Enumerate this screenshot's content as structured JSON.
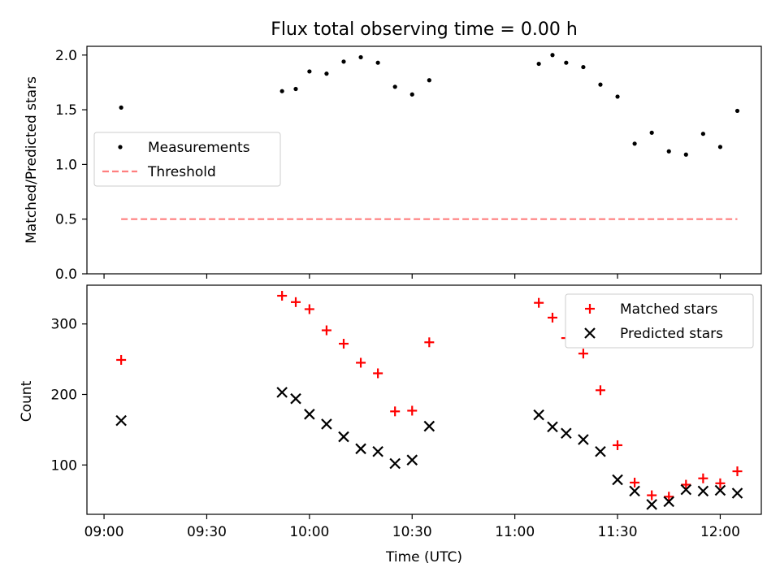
{
  "figure": {
    "title": "Flux total observing time = 0.00 h",
    "xlabel": "Time (UTC)"
  },
  "colors": {
    "measurement": "#000000",
    "threshold": "#ff7f7f",
    "matched": "#ff0000",
    "predicted": "#000000"
  },
  "chart_data": [
    {
      "type": "scatter",
      "panel": "top",
      "title": "Flux total observing time = 0.00 h",
      "xlabel": "",
      "ylabel": "Matched/Predicted stars",
      "xlim": [
        "08:55",
        "12:12"
      ],
      "ylim": [
        0,
        2.08
      ],
      "x_ticks": [
        "09:00",
        "09:30",
        "10:00",
        "10:30",
        "11:00",
        "11:30",
        "12:00"
      ],
      "y_ticks": [
        "0.0",
        "0.5",
        "1.0",
        "1.5",
        "2.0"
      ],
      "legend": {
        "placement": "center-left",
        "entries": [
          "Measurements",
          "Threshold"
        ]
      },
      "series": [
        {
          "name": "Measurements",
          "marker": "dot",
          "points": [
            {
              "x": "09:05",
              "y": 1.52
            },
            {
              "x": "09:52",
              "y": 1.67
            },
            {
              "x": "09:56",
              "y": 1.69
            },
            {
              "x": "10:00",
              "y": 1.85
            },
            {
              "x": "10:05",
              "y": 1.83
            },
            {
              "x": "10:10",
              "y": 1.94
            },
            {
              "x": "10:15",
              "y": 1.98
            },
            {
              "x": "10:20",
              "y": 1.93
            },
            {
              "x": "10:25",
              "y": 1.71
            },
            {
              "x": "10:30",
              "y": 1.64
            },
            {
              "x": "10:35",
              "y": 1.77
            },
            {
              "x": "11:07",
              "y": 1.92
            },
            {
              "x": "11:11",
              "y": 2.0
            },
            {
              "x": "11:15",
              "y": 1.93
            },
            {
              "x": "11:20",
              "y": 1.89
            },
            {
              "x": "11:25",
              "y": 1.73
            },
            {
              "x": "11:30",
              "y": 1.62
            },
            {
              "x": "11:35",
              "y": 1.19
            },
            {
              "x": "11:40",
              "y": 1.29
            },
            {
              "x": "11:45",
              "y": 1.12
            },
            {
              "x": "11:50",
              "y": 1.09
            },
            {
              "x": "11:55",
              "y": 1.28
            },
            {
              "x": "12:00",
              "y": 1.16
            },
            {
              "x": "12:05",
              "y": 1.49
            }
          ]
        },
        {
          "name": "Threshold",
          "style": "dashed",
          "points": [
            {
              "x": "09:05",
              "y": 0.5
            },
            {
              "x": "12:05",
              "y": 0.5
            }
          ]
        }
      ]
    },
    {
      "type": "scatter",
      "panel": "bottom",
      "xlabel": "Time (UTC)",
      "ylabel": "Count",
      "xlim": [
        "08:55",
        "12:12"
      ],
      "ylim": [
        30,
        355
      ],
      "x_ticks": [
        "09:00",
        "09:30",
        "10:00",
        "10:30",
        "11:00",
        "11:30",
        "12:00"
      ],
      "y_ticks": [
        "100",
        "200",
        "300"
      ],
      "legend": {
        "placement": "top-right",
        "entries": [
          "Matched stars",
          "Predicted stars"
        ]
      },
      "series": [
        {
          "name": "Matched stars",
          "marker": "plus",
          "points": [
            {
              "x": "09:05",
              "y": 249
            },
            {
              "x": "09:52",
              "y": 340
            },
            {
              "x": "09:56",
              "y": 331
            },
            {
              "x": "10:00",
              "y": 321
            },
            {
              "x": "10:05",
              "y": 291
            },
            {
              "x": "10:10",
              "y": 272
            },
            {
              "x": "10:15",
              "y": 245
            },
            {
              "x": "10:20",
              "y": 230
            },
            {
              "x": "10:25",
              "y": 176
            },
            {
              "x": "10:30",
              "y": 177
            },
            {
              "x": "10:35",
              "y": 274
            },
            {
              "x": "11:07",
              "y": 330
            },
            {
              "x": "11:11",
              "y": 309
            },
            {
              "x": "11:15",
              "y": 280
            },
            {
              "x": "11:20",
              "y": 258
            },
            {
              "x": "11:25",
              "y": 206
            },
            {
              "x": "11:30",
              "y": 128
            },
            {
              "x": "11:35",
              "y": 75
            },
            {
              "x": "11:40",
              "y": 57
            },
            {
              "x": "11:45",
              "y": 55
            },
            {
              "x": "11:50",
              "y": 72
            },
            {
              "x": "11:55",
              "y": 81
            },
            {
              "x": "12:00",
              "y": 74
            },
            {
              "x": "12:05",
              "y": 91
            }
          ]
        },
        {
          "name": "Predicted stars",
          "marker": "x",
          "points": [
            {
              "x": "09:05",
              "y": 163
            },
            {
              "x": "09:52",
              "y": 203
            },
            {
              "x": "09:56",
              "y": 194
            },
            {
              "x": "10:00",
              "y": 172
            },
            {
              "x": "10:05",
              "y": 158
            },
            {
              "x": "10:10",
              "y": 140
            },
            {
              "x": "10:15",
              "y": 123
            },
            {
              "x": "10:20",
              "y": 119
            },
            {
              "x": "10:25",
              "y": 102
            },
            {
              "x": "10:30",
              "y": 107
            },
            {
              "x": "10:35",
              "y": 155
            },
            {
              "x": "11:07",
              "y": 171
            },
            {
              "x": "11:11",
              "y": 154
            },
            {
              "x": "11:15",
              "y": 145
            },
            {
              "x": "11:20",
              "y": 136
            },
            {
              "x": "11:25",
              "y": 119
            },
            {
              "x": "11:30",
              "y": 79
            },
            {
              "x": "11:35",
              "y": 63
            },
            {
              "x": "11:40",
              "y": 44
            },
            {
              "x": "11:45",
              "y": 48
            },
            {
              "x": "11:50",
              "y": 65
            },
            {
              "x": "11:55",
              "y": 63
            },
            {
              "x": "12:00",
              "y": 64
            },
            {
              "x": "12:05",
              "y": 60
            }
          ]
        }
      ]
    }
  ]
}
